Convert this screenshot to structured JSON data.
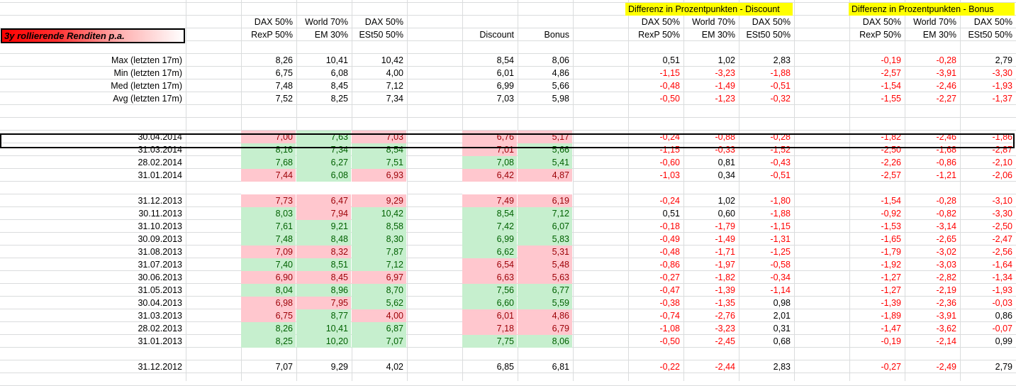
{
  "title": "3y rollierende Renditen p.a.",
  "headers": {
    "diff_discount": "Differenz in Prozentpunkten -  Discount",
    "diff_bonus": "Differenz in Prozentpunkten -  Bonus",
    "c1": [
      "DAX 50%",
      "RexP 50%"
    ],
    "c2": [
      "World 70%",
      "EM 30%"
    ],
    "c3": [
      "DAX 50%",
      "ESt50 50%"
    ],
    "discount": "Discount",
    "bonus": "Bonus"
  },
  "stats": [
    {
      "label": "Max (letzten 17m)",
      "v": [
        "8,26",
        "10,41",
        "10,42",
        "8,54",
        "8,06",
        "0,51",
        "1,02",
        "2,83",
        "-0,19",
        "-0,28",
        "2,79"
      ]
    },
    {
      "label": "Min (letzten 17m)",
      "v": [
        "6,75",
        "6,08",
        "4,00",
        "6,01",
        "4,86",
        "-1,15",
        "-3,23",
        "-1,88",
        "-2,57",
        "-3,91",
        "-3,30"
      ]
    },
    {
      "label": "Med (letzten 17m)",
      "v": [
        "7,48",
        "8,45",
        "7,12",
        "6,99",
        "5,66",
        "-0,48",
        "-1,49",
        "-0,51",
        "-1,54",
        "-2,46",
        "-1,93"
      ]
    },
    {
      "label": "Avg (letzten 17m)",
      "v": [
        "7,52",
        "8,25",
        "7,34",
        "7,03",
        "5,98",
        "-0,50",
        "-1,23",
        "-0,32",
        "-1,55",
        "-2,27",
        "-1,37"
      ]
    }
  ],
  "rows": [
    {
      "date": "30.04.2014",
      "v": [
        "7,00",
        "7,63",
        "7,03",
        "6,76",
        "5,17",
        "-0,24",
        "-0,88",
        "-0,28",
        "-1,82",
        "-2,46",
        "-1,86"
      ],
      "hl": [
        "p",
        "g",
        "p",
        "p",
        "p"
      ]
    },
    {
      "date": "31.03.2014",
      "v": [
        "8,16",
        "7,34",
        "8,54",
        "7,01",
        "5,66",
        "-1,15",
        "-0,33",
        "-1,52",
        "-2,50",
        "-1,68",
        "-2,87"
      ],
      "hl": [
        "g",
        "g",
        "g",
        "p",
        "g"
      ]
    },
    {
      "date": "28.02.2014",
      "v": [
        "7,68",
        "6,27",
        "7,51",
        "7,08",
        "5,41",
        "-0,60",
        "0,81",
        "-0,43",
        "-2,26",
        "-0,86",
        "-2,10"
      ],
      "hl": [
        "g",
        "g",
        "g",
        "g",
        "g"
      ]
    },
    {
      "date": "31.01.2014",
      "v": [
        "7,44",
        "6,08",
        "6,93",
        "6,42",
        "4,87",
        "-1,03",
        "0,34",
        "-0,51",
        "-2,57",
        "-1,21",
        "-2,06"
      ],
      "hl": [
        "p",
        "g",
        "p",
        "p",
        "p"
      ]
    },
    {
      "date": "31.12.2013",
      "v": [
        "7,73",
        "6,47",
        "9,29",
        "7,49",
        "6,19",
        "-0,24",
        "1,02",
        "-1,80",
        "-1,54",
        "-0,28",
        "-3,10"
      ],
      "hl": [
        "p",
        "p",
        "p",
        "p",
        "p"
      ]
    },
    {
      "date": "30.11.2013",
      "v": [
        "8,03",
        "7,94",
        "10,42",
        "8,54",
        "7,12",
        "0,51",
        "0,60",
        "-1,88",
        "-0,92",
        "-0,82",
        "-3,30"
      ],
      "hl": [
        "g",
        "p",
        "g",
        "g",
        "g"
      ]
    },
    {
      "date": "31.10.2013",
      "v": [
        "7,61",
        "9,21",
        "8,58",
        "7,42",
        "6,07",
        "-0,18",
        "-1,79",
        "-1,15",
        "-1,53",
        "-3,14",
        "-2,50"
      ],
      "hl": [
        "g",
        "g",
        "g",
        "g",
        "g"
      ]
    },
    {
      "date": "30.09.2013",
      "v": [
        "7,48",
        "8,48",
        "8,30",
        "6,99",
        "5,83",
        "-0,49",
        "-1,49",
        "-1,31",
        "-1,65",
        "-2,65",
        "-2,47"
      ],
      "hl": [
        "g",
        "g",
        "g",
        "g",
        "g"
      ]
    },
    {
      "date": "31.08.2013",
      "v": [
        "7,09",
        "8,32",
        "7,87",
        "6,62",
        "5,31",
        "-0,48",
        "-1,71",
        "-1,25",
        "-1,79",
        "-3,02",
        "-2,56"
      ],
      "hl": [
        "p",
        "p",
        "g",
        "g",
        "p"
      ]
    },
    {
      "date": "31.07.2013",
      "v": [
        "7,40",
        "8,51",
        "7,12",
        "6,54",
        "5,48",
        "-0,86",
        "-1,97",
        "-0,58",
        "-1,92",
        "-3,03",
        "-1,64"
      ],
      "hl": [
        "g",
        "g",
        "g",
        "p",
        "p"
      ]
    },
    {
      "date": "30.06.2013",
      "v": [
        "6,90",
        "8,45",
        "6,97",
        "6,63",
        "5,63",
        "-0,27",
        "-1,82",
        "-0,34",
        "-1,27",
        "-2,82",
        "-1,34"
      ],
      "hl": [
        "p",
        "p",
        "p",
        "p",
        "p"
      ]
    },
    {
      "date": "31.05.2013",
      "v": [
        "8,04",
        "8,96",
        "8,70",
        "7,56",
        "6,77",
        "-0,47",
        "-1,39",
        "-1,14",
        "-1,27",
        "-2,19",
        "-1,93"
      ],
      "hl": [
        "g",
        "g",
        "g",
        "g",
        "g"
      ]
    },
    {
      "date": "30.04.2013",
      "v": [
        "6,98",
        "7,95",
        "5,62",
        "6,60",
        "5,59",
        "-0,38",
        "-1,35",
        "0,98",
        "-1,39",
        "-2,36",
        "-0,03"
      ],
      "hl": [
        "p",
        "p",
        "g",
        "g",
        "g"
      ]
    },
    {
      "date": "31.03.2013",
      "v": [
        "6,75",
        "8,77",
        "4,00",
        "6,01",
        "4,86",
        "-0,74",
        "-2,76",
        "2,01",
        "-1,89",
        "-3,91",
        "0,86"
      ],
      "hl": [
        "p",
        "g",
        "p",
        "p",
        "p"
      ]
    },
    {
      "date": "28.02.2013",
      "v": [
        "8,26",
        "10,41",
        "6,87",
        "7,18",
        "6,79",
        "-1,08",
        "-3,23",
        "0,31",
        "-1,47",
        "-3,62",
        "-0,07"
      ],
      "hl": [
        "g",
        "g",
        "g",
        "p",
        "p"
      ]
    },
    {
      "date": "31.01.2013",
      "v": [
        "8,25",
        "10,20",
        "7,07",
        "7,75",
        "8,06",
        "-0,50",
        "-2,45",
        "0,68",
        "-0,19",
        "-2,14",
        "0,99"
      ],
      "hl": [
        "g",
        "g",
        "g",
        "g",
        "g"
      ]
    },
    {
      "date": "31.12.2012",
      "v": [
        "7,07",
        "9,29",
        "4,02",
        "6,85",
        "6,81",
        "-0,22",
        "-2,44",
        "2,83",
        "-0,27",
        "-2,49",
        "2,79"
      ],
      "hl": [
        "",
        "",
        "",
        "",
        ""
      ]
    }
  ]
}
